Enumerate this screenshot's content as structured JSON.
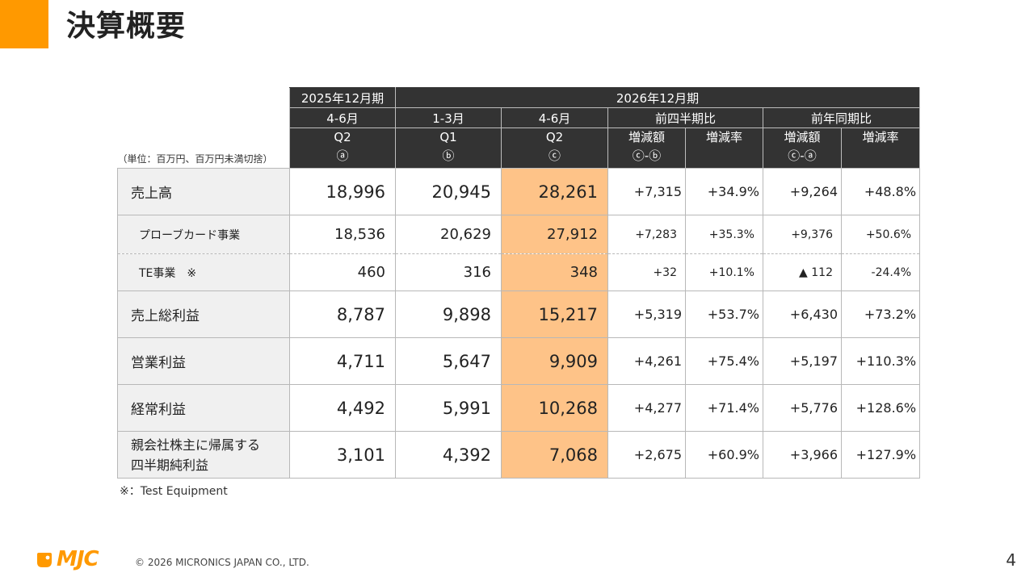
{
  "title": "決算概要",
  "colors": {
    "accent": "#ff9900",
    "header_bg": "#333333",
    "highlight": "#fec388",
    "label_bg": "#f0f0f0"
  },
  "table": {
    "unit_note": "（単位：百万円、百万円未満切捨）",
    "header": {
      "fy2025": "2025年12月期",
      "fy2026": "2026年12月期",
      "period_a": "4-6月",
      "period_b": "1-3月",
      "period_c": "4-6月",
      "qoq": "前四半期比",
      "yoy": "前年同期比",
      "q_a": "Q2",
      "q_b": "Q1",
      "q_c": "Q2",
      "mark_a": "ⓐ",
      "mark_b": "ⓑ",
      "mark_c": "ⓒ",
      "qoq_amount": "増減額",
      "qoq_amount_formula": "ⓒ-ⓑ",
      "qoq_rate": "増減率",
      "yoy_amount": "増減額",
      "yoy_amount_formula": "ⓒ-ⓐ",
      "yoy_rate": "増減率"
    },
    "rows": [
      {
        "label": "売上高",
        "a": "18,996",
        "b": "20,945",
        "c": "28,261",
        "qoq_amount": "+7,315",
        "qoq_rate": "+34.9%",
        "yoy_amount": "+9,264",
        "yoy_rate": "+48.8%"
      },
      {
        "label": "プローブカード事業",
        "a": "18,536",
        "b": "20,629",
        "c": "27,912",
        "qoq_amount": "+7,283",
        "qoq_rate": "+35.3%",
        "yoy_amount": "+9,376",
        "yoy_rate": "+50.6%"
      },
      {
        "label": "TE事業　※",
        "a": "460",
        "b": "316",
        "c": "348",
        "qoq_amount": "+32",
        "qoq_rate": "+10.1%",
        "yoy_amount": "▲ 112",
        "yoy_rate": "-24.4%"
      },
      {
        "label": "売上総利益",
        "a": "8,787",
        "b": "9,898",
        "c": "15,217",
        "qoq_amount": "+5,319",
        "qoq_rate": "+53.7%",
        "yoy_amount": "+6,430",
        "yoy_rate": "+73.2%"
      },
      {
        "label": "営業利益",
        "a": "4,711",
        "b": "5,647",
        "c": "9,909",
        "qoq_amount": "+4,261",
        "qoq_rate": "+75.4%",
        "yoy_amount": "+5,197",
        "yoy_rate": "+110.3%"
      },
      {
        "label": "経常利益",
        "a": "4,492",
        "b": "5,991",
        "c": "10,268",
        "qoq_amount": "+4,277",
        "qoq_rate": "+71.4%",
        "yoy_amount": "+5,776",
        "yoy_rate": "+128.6%"
      },
      {
        "label_line1": "親会社株主に帰属する",
        "label_line2": "四半期純利益",
        "a": "3,101",
        "b": "4,392",
        "c": "7,068",
        "qoq_amount": "+2,675",
        "qoq_rate": "+60.9%",
        "yoy_amount": "+3,966",
        "yoy_rate": "+127.9%"
      }
    ]
  },
  "footnote": "※：Test Equipment",
  "logo_text": "MJC",
  "copyright": "© 2026 MICRONICS JAPAN CO., LTD.",
  "page_number": "4"
}
